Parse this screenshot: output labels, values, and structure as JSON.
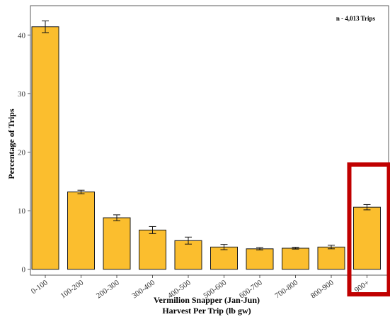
{
  "chart_data": {
    "type": "bar",
    "categories": [
      "0-100",
      "100-200",
      "200-300",
      "300-400",
      "400-500",
      "500-600",
      "600-700",
      "700-800",
      "800-900",
      "900+"
    ],
    "values": [
      41.4,
      13.2,
      8.8,
      6.7,
      4.9,
      3.8,
      3.5,
      3.6,
      3.8,
      10.6
    ],
    "errors": [
      1.0,
      0.3,
      0.5,
      0.6,
      0.6,
      0.45,
      0.2,
      0.15,
      0.3,
      0.45
    ],
    "ylim": [
      -1,
      45
    ],
    "yticks": [
      0,
      10,
      20,
      30,
      40
    ],
    "ylabel": "Percentage of Trips",
    "xlabel_line1": "Vermilion Snapper (Jan-Jun)",
    "xlabel_line2": "Harvest Per Trip (lb gw)",
    "annotation": "n - 4,013 Trips",
    "highlighted_category": "900+",
    "grid": false,
    "colors": {
      "bar_fill": "#FBBE2E",
      "bar_stroke": "#1a1a1a",
      "highlight": "#C00000",
      "panel_border": "#333333"
    }
  }
}
